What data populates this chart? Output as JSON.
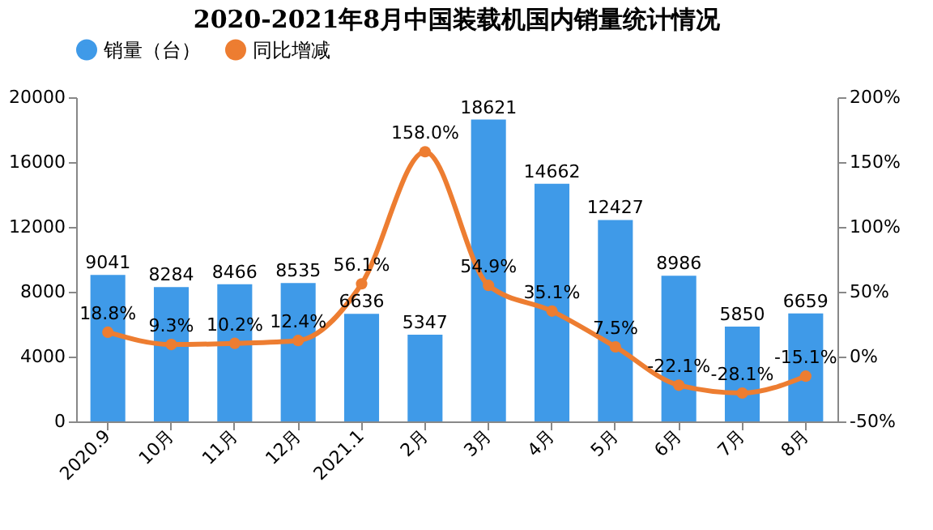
{
  "chart_data": {
    "type": "bar",
    "title": "2020-2021年8月中国装载机国内销量统计情况",
    "categories": [
      "2020.9",
      "10月",
      "11月",
      "12月",
      "2021.1",
      "2月",
      "3月",
      "4月",
      "5月",
      "6月",
      "7月",
      "8月"
    ],
    "series": [
      {
        "name": "销量（台）",
        "type": "bar",
        "color": "#3f9ae8",
        "values": [
          9041,
          8284,
          8466,
          8535,
          6636,
          5347,
          18621,
          14662,
          12427,
          8986,
          5850,
          6659
        ],
        "value_labels": [
          "9041",
          "8284",
          "8466",
          "8535",
          "6636",
          "5347",
          "18621",
          "14662",
          "12427",
          "8986",
          "5850",
          "6659"
        ]
      },
      {
        "name": "同比增减",
        "type": "line",
        "axis": "y2",
        "color": "#ed7d31",
        "marker": "circle",
        "values": [
          18.8,
          9.3,
          10.2,
          12.4,
          56.1,
          158.0,
          54.9,
          35.1,
          7.5,
          -22.1,
          -28.1,
          -15.1
        ],
        "value_labels": [
          "18.8%",
          "9.3%",
          "10.2%",
          "12.4%",
          "56.1%",
          "158.0%",
          "54.9%",
          "35.1%",
          "7.5%",
          "-22.1%",
          "-28.1%",
          "-15.1%"
        ]
      }
    ],
    "ylim": [
      0,
      20000
    ],
    "yticks": [
      0,
      4000,
      8000,
      12000,
      16000,
      20000
    ],
    "y2lim": [
      -50,
      200
    ],
    "y2ticks": [
      {
        "value": -50,
        "label": "-50%"
      },
      {
        "value": 0,
        "label": "0%"
      },
      {
        "value": 50,
        "label": "50%"
      },
      {
        "value": 100,
        "label": "100%"
      },
      {
        "value": 150,
        "label": "150%"
      },
      {
        "value": 200,
        "label": "200%"
      }
    ],
    "legend": "top",
    "grid": false
  }
}
